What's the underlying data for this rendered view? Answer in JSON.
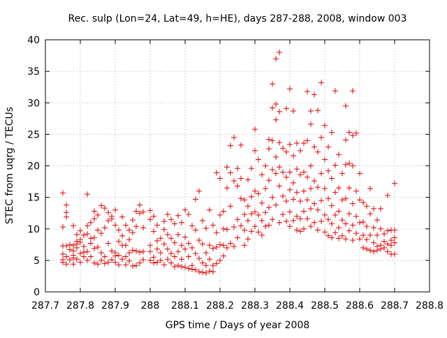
{
  "chart_data": {
    "type": "scatter",
    "title": "Rec. sulp (Lon=24, Lat=49, h=HE), days 287-288, 2008, window 003",
    "xlabel": "GPS time / Days of year 2008",
    "ylabel": "STEC from uqrg / TECUs",
    "xlim": [
      287.7,
      288.8
    ],
    "ylim": [
      0,
      40
    ],
    "x_ticks": [
      "287.7",
      "287.8",
      "287.9",
      "288",
      "288.1",
      "288.2",
      "288.3",
      "288.4",
      "288.5",
      "288.6",
      "288.7",
      "288.8"
    ],
    "y_ticks": [
      "0",
      "5",
      "10",
      "15",
      "20",
      "25",
      "30",
      "35",
      "40"
    ],
    "grid": true,
    "marker": "+",
    "colors": {
      "points": "#e00000",
      "grid": "#b0b0b0",
      "axes": "#000000"
    },
    "points": [
      [
        287.75,
        15.7
      ],
      [
        287.75,
        10.3
      ],
      [
        287.75,
        7.3
      ],
      [
        287.75,
        6.0
      ],
      [
        287.75,
        5.1
      ],
      [
        287.75,
        4.7
      ],
      [
        287.76,
        13.8
      ],
      [
        287.76,
        12.6
      ],
      [
        287.76,
        11.9
      ],
      [
        287.76,
        7.3
      ],
      [
        287.76,
        5.6
      ],
      [
        287.76,
        4.4
      ],
      [
        287.77,
        7.5
      ],
      [
        287.77,
        6.7
      ],
      [
        287.77,
        5.1
      ],
      [
        287.78,
        10.5
      ],
      [
        287.78,
        7.4
      ],
      [
        287.78,
        6.5
      ],
      [
        287.78,
        5.8
      ],
      [
        287.78,
        5.4
      ],
      [
        287.78,
        4.4
      ],
      [
        287.79,
        9.1
      ],
      [
        287.79,
        8.0
      ],
      [
        287.79,
        7.6
      ],
      [
        287.79,
        7.0
      ],
      [
        287.79,
        5.2
      ],
      [
        287.8,
        9.7
      ],
      [
        287.8,
        8.3
      ],
      [
        287.8,
        7.9
      ],
      [
        287.8,
        6.1
      ],
      [
        287.8,
        4.7
      ],
      [
        287.81,
        9.0
      ],
      [
        287.81,
        7.2
      ],
      [
        287.81,
        6.3
      ],
      [
        287.81,
        5.6
      ],
      [
        287.82,
        15.5
      ],
      [
        287.82,
        10.5
      ],
      [
        287.82,
        9.2
      ],
      [
        287.82,
        6.4
      ],
      [
        287.82,
        5.0
      ],
      [
        287.83,
        11.0
      ],
      [
        287.83,
        8.5
      ],
      [
        287.83,
        7.7
      ],
      [
        287.83,
        5.6
      ],
      [
        287.84,
        12.8
      ],
      [
        287.84,
        11.6
      ],
      [
        287.84,
        8.6
      ],
      [
        287.84,
        6.9
      ],
      [
        287.84,
        4.6
      ],
      [
        287.85,
        12.2
      ],
      [
        287.85,
        9.8
      ],
      [
        287.85,
        7.1
      ],
      [
        287.85,
        4.4
      ],
      [
        287.86,
        13.7
      ],
      [
        287.86,
        9.3
      ],
      [
        287.86,
        6.2
      ],
      [
        287.86,
        5.0
      ],
      [
        287.87,
        13.3
      ],
      [
        287.87,
        10.2
      ],
      [
        287.87,
        5.6
      ],
      [
        287.87,
        4.5
      ],
      [
        287.88,
        12.6
      ],
      [
        287.88,
        11.3
      ],
      [
        287.88,
        7.7
      ],
      [
        287.88,
        4.7
      ],
      [
        287.89,
        12.0
      ],
      [
        287.89,
        11.6
      ],
      [
        287.89,
        6.5
      ],
      [
        287.89,
        5.1
      ],
      [
        287.9,
        13.0
      ],
      [
        287.9,
        10.6
      ],
      [
        287.9,
        6.2
      ],
      [
        287.9,
        5.7
      ],
      [
        287.9,
        4.7
      ],
      [
        287.91,
        9.8
      ],
      [
        287.91,
        8.0
      ],
      [
        287.91,
        5.8
      ],
      [
        287.91,
        4.3
      ],
      [
        287.92,
        11.9
      ],
      [
        287.92,
        8.9
      ],
      [
        287.92,
        7.4
      ],
      [
        287.92,
        5.2
      ],
      [
        287.93,
        10.6
      ],
      [
        287.93,
        7.4
      ],
      [
        287.93,
        5.6
      ],
      [
        287.93,
        4.3
      ],
      [
        287.94,
        9.8
      ],
      [
        287.94,
        8.3
      ],
      [
        287.94,
        6.2
      ],
      [
        287.94,
        4.9
      ],
      [
        287.95,
        11.4
      ],
      [
        287.95,
        9.4
      ],
      [
        287.95,
        6.6
      ],
      [
        287.95,
        4.1
      ],
      [
        287.96,
        12.8
      ],
      [
        287.96,
        10.4
      ],
      [
        287.96,
        6.5
      ],
      [
        287.96,
        4.2
      ],
      [
        287.97,
        13.8
      ],
      [
        287.97,
        12.5
      ],
      [
        287.97,
        6.3
      ],
      [
        287.97,
        4.6
      ],
      [
        287.98,
        12.7
      ],
      [
        287.98,
        10.2
      ],
      [
        287.98,
        6.4
      ],
      [
        287.98,
        5.1
      ],
      [
        288.0,
        12.9
      ],
      [
        288.0,
        11.5
      ],
      [
        288.0,
        7.4
      ],
      [
        288.0,
        6.4
      ],
      [
        288.0,
        5.0
      ],
      [
        288.01,
        12.0
      ],
      [
        288.01,
        9.6
      ],
      [
        288.01,
        5.5
      ],
      [
        288.01,
        4.6
      ],
      [
        288.02,
        10.6
      ],
      [
        288.02,
        8.1
      ],
      [
        288.02,
        6.8
      ],
      [
        288.02,
        4.7
      ],
      [
        288.03,
        8.5
      ],
      [
        288.03,
        6.2
      ],
      [
        288.03,
        5.0
      ],
      [
        288.04,
        11.2
      ],
      [
        288.04,
        9.9
      ],
      [
        288.04,
        7.6
      ],
      [
        288.04,
        4.3
      ],
      [
        288.05,
        12.3
      ],
      [
        288.05,
        9.1
      ],
      [
        288.05,
        6.8
      ],
      [
        288.05,
        5.2
      ],
      [
        288.06,
        11.5
      ],
      [
        288.06,
        8.5
      ],
      [
        288.06,
        6.1
      ],
      [
        288.06,
        4.6
      ],
      [
        288.07,
        10.8
      ],
      [
        288.07,
        7.8
      ],
      [
        288.07,
        5.6
      ],
      [
        288.07,
        4.0
      ],
      [
        288.08,
        12.1
      ],
      [
        288.08,
        9.1
      ],
      [
        288.08,
        6.4
      ],
      [
        288.08,
        4.2
      ],
      [
        288.09,
        11.0
      ],
      [
        288.09,
        7.4
      ],
      [
        288.09,
        5.2
      ],
      [
        288.09,
        4.0
      ],
      [
        288.1,
        13.0
      ],
      [
        288.1,
        8.7
      ],
      [
        288.1,
        6.8
      ],
      [
        288.1,
        3.9
      ],
      [
        288.11,
        12.3
      ],
      [
        288.11,
        7.7
      ],
      [
        288.11,
        5.6
      ],
      [
        288.11,
        3.7
      ],
      [
        288.12,
        10.5
      ],
      [
        288.12,
        7.0
      ],
      [
        288.12,
        4.2
      ],
      [
        288.12,
        3.6
      ],
      [
        288.13,
        14.7
      ],
      [
        288.13,
        9.8
      ],
      [
        288.13,
        6.1
      ],
      [
        288.13,
        3.5
      ],
      [
        288.14,
        16.0
      ],
      [
        288.14,
        8.2
      ],
      [
        288.14,
        5.3
      ],
      [
        288.14,
        3.2
      ],
      [
        288.15,
        11.3
      ],
      [
        288.15,
        7.6
      ],
      [
        288.15,
        4.6
      ],
      [
        288.15,
        3.1
      ],
      [
        288.16,
        10.1
      ],
      [
        288.16,
        6.2
      ],
      [
        288.16,
        4.2
      ],
      [
        288.16,
        3.0
      ],
      [
        288.17,
        13.0
      ],
      [
        288.17,
        7.4
      ],
      [
        288.17,
        5.2
      ],
      [
        288.17,
        3.3
      ],
      [
        288.18,
        10.6
      ],
      [
        288.18,
        6.9
      ],
      [
        288.18,
        4.2
      ],
      [
        288.18,
        3.2
      ],
      [
        288.19,
        18.9
      ],
      [
        288.19,
        9.4
      ],
      [
        288.19,
        7.1
      ],
      [
        288.19,
        4.5
      ],
      [
        288.2,
        18.0
      ],
      [
        288.2,
        12.2
      ],
      [
        288.2,
        7.5
      ],
      [
        288.2,
        5.0
      ],
      [
        288.21,
        12.8
      ],
      [
        288.21,
        10.0
      ],
      [
        288.21,
        7.4
      ],
      [
        288.21,
        5.7
      ],
      [
        288.22,
        19.8
      ],
      [
        288.22,
        16.5
      ],
      [
        288.22,
        9.9
      ],
      [
        288.22,
        7.0
      ],
      [
        288.23,
        23.2
      ],
      [
        288.23,
        18.9
      ],
      [
        288.23,
        13.6
      ],
      [
        288.23,
        7.7
      ],
      [
        288.24,
        24.5
      ],
      [
        288.24,
        17.6
      ],
      [
        288.24,
        10.3
      ],
      [
        288.24,
        7.2
      ],
      [
        288.25,
        19.6
      ],
      [
        288.25,
        16.8
      ],
      [
        288.25,
        11.5
      ],
      [
        288.25,
        8.6
      ],
      [
        288.26,
        23.3
      ],
      [
        288.26,
        18.0
      ],
      [
        288.26,
        14.8
      ],
      [
        288.26,
        10.5
      ],
      [
        288.27,
        14.6
      ],
      [
        288.27,
        12.3
      ],
      [
        288.27,
        9.8
      ],
      [
        288.27,
        7.4
      ],
      [
        288.28,
        17.8
      ],
      [
        288.28,
        13.6
      ],
      [
        288.28,
        11.3
      ],
      [
        288.28,
        8.4
      ],
      [
        288.29,
        19.6
      ],
      [
        288.29,
        15.1
      ],
      [
        288.29,
        12.4
      ],
      [
        288.29,
        9.6
      ],
      [
        288.3,
        25.8
      ],
      [
        288.3,
        22.4
      ],
      [
        288.3,
        16.0
      ],
      [
        288.3,
        12.7
      ],
      [
        288.3,
        10.4
      ],
      [
        288.31,
        21.0
      ],
      [
        288.31,
        15.6
      ],
      [
        288.31,
        12.2
      ],
      [
        288.31,
        9.5
      ],
      [
        288.32,
        18.6
      ],
      [
        288.32,
        14.1
      ],
      [
        288.32,
        11.3
      ],
      [
        288.32,
        9.0
      ],
      [
        288.33,
        20.0
      ],
      [
        288.33,
        16.4
      ],
      [
        288.33,
        12.6
      ],
      [
        288.33,
        10.4
      ],
      [
        288.34,
        24.2
      ],
      [
        288.34,
        22.7
      ],
      [
        288.34,
        17.7
      ],
      [
        288.34,
        13.4
      ],
      [
        288.34,
        10.6
      ],
      [
        288.35,
        33.0
      ],
      [
        288.35,
        29.2
      ],
      [
        288.35,
        24.0
      ],
      [
        288.35,
        19.4
      ],
      [
        288.35,
        15.0
      ],
      [
        288.35,
        11.5
      ],
      [
        288.36,
        37.0
      ],
      [
        288.36,
        29.8
      ],
      [
        288.36,
        27.3
      ],
      [
        288.36,
        21.4
      ],
      [
        288.36,
        18.8
      ],
      [
        288.36,
        13.8
      ],
      [
        288.37,
        38.0
      ],
      [
        288.37,
        28.6
      ],
      [
        288.37,
        23.7
      ],
      [
        288.37,
        19.8
      ],
      [
        288.37,
        16.8
      ],
      [
        288.37,
        11.0
      ],
      [
        288.38,
        22.8
      ],
      [
        288.38,
        19.0
      ],
      [
        288.38,
        15.2
      ],
      [
        288.38,
        12.3
      ],
      [
        288.39,
        29.1
      ],
      [
        288.39,
        22.2
      ],
      [
        288.39,
        18.2
      ],
      [
        288.39,
        14.4
      ],
      [
        288.39,
        11.2
      ],
      [
        288.4,
        32.2
      ],
      [
        288.4,
        23.4
      ],
      [
        288.4,
        19.0
      ],
      [
        288.4,
        16.2
      ],
      [
        288.4,
        12.7
      ],
      [
        288.4,
        10.4
      ],
      [
        288.41,
        28.7
      ],
      [
        288.41,
        21.6
      ],
      [
        288.41,
        17.3
      ],
      [
        288.41,
        14.7
      ],
      [
        288.41,
        11.3
      ],
      [
        288.42,
        23.6
      ],
      [
        288.42,
        19.5
      ],
      [
        288.42,
        15.8
      ],
      [
        288.42,
        12.0
      ],
      [
        288.42,
        9.8
      ],
      [
        288.43,
        22.4
      ],
      [
        288.43,
        18.6
      ],
      [
        288.43,
        14.4
      ],
      [
        288.43,
        11.6
      ],
      [
        288.43,
        9.6
      ],
      [
        288.44,
        23.6
      ],
      [
        288.44,
        19.0
      ],
      [
        288.44,
        16.0
      ],
      [
        288.44,
        12.8
      ],
      [
        288.44,
        10.0
      ],
      [
        288.45,
        31.8
      ],
      [
        288.45,
        24.0
      ],
      [
        288.45,
        18.2
      ],
      [
        288.45,
        14.6
      ],
      [
        288.45,
        11.6
      ],
      [
        288.46,
        28.7
      ],
      [
        288.46,
        26.6
      ],
      [
        288.46,
        20.0
      ],
      [
        288.46,
        16.4
      ],
      [
        288.46,
        13.2
      ],
      [
        288.46,
        10.4
      ],
      [
        288.47,
        31.3
      ],
      [
        288.47,
        23.0
      ],
      [
        288.47,
        17.6
      ],
      [
        288.47,
        14.0
      ],
      [
        288.47,
        11.0
      ],
      [
        288.48,
        28.8
      ],
      [
        288.48,
        22.2
      ],
      [
        288.48,
        16.6
      ],
      [
        288.48,
        13.0
      ],
      [
        288.48,
        9.8
      ],
      [
        288.49,
        33.2
      ],
      [
        288.49,
        24.5
      ],
      [
        288.49,
        18.8
      ],
      [
        288.49,
        14.5
      ],
      [
        288.49,
        11.2
      ],
      [
        288.5,
        26.4
      ],
      [
        288.5,
        21.0
      ],
      [
        288.5,
        16.4
      ],
      [
        288.5,
        12.2
      ],
      [
        288.5,
        9.5
      ],
      [
        288.51,
        23.0
      ],
      [
        288.51,
        19.2
      ],
      [
        288.51,
        14.8
      ],
      [
        288.51,
        11.5
      ],
      [
        288.51,
        8.9
      ],
      [
        288.52,
        25.3
      ],
      [
        288.52,
        18.0
      ],
      [
        288.52,
        13.7
      ],
      [
        288.52,
        10.8
      ],
      [
        288.52,
        8.6
      ],
      [
        288.53,
        31.9
      ],
      [
        288.53,
        20.1
      ],
      [
        288.53,
        15.8
      ],
      [
        288.53,
        12.2
      ],
      [
        288.53,
        9.4
      ],
      [
        288.54,
        21.8
      ],
      [
        288.54,
        16.5
      ],
      [
        288.54,
        12.8
      ],
      [
        288.54,
        10.2
      ],
      [
        288.54,
        8.5
      ],
      [
        288.55,
        18.8
      ],
      [
        288.55,
        14.6
      ],
      [
        288.55,
        11.4
      ],
      [
        288.55,
        8.9
      ],
      [
        288.56,
        29.5
      ],
      [
        288.56,
        24.1
      ],
      [
        288.56,
        20.2
      ],
      [
        288.56,
        14.8
      ],
      [
        288.56,
        10.8
      ],
      [
        288.56,
        8.4
      ],
      [
        288.57,
        25.3
      ],
      [
        288.57,
        20.4
      ],
      [
        288.57,
        16.5
      ],
      [
        288.57,
        12.4
      ],
      [
        288.57,
        9.7
      ],
      [
        288.58,
        31.9
      ],
      [
        288.58,
        24.8
      ],
      [
        288.58,
        20.0
      ],
      [
        288.58,
        14.0
      ],
      [
        288.58,
        10.6
      ],
      [
        288.58,
        8.2
      ],
      [
        288.59,
        25.2
      ],
      [
        288.59,
        16.0
      ],
      [
        288.59,
        12.0
      ],
      [
        288.59,
        9.3
      ],
      [
        288.6,
        18.8
      ],
      [
        288.6,
        14.6
      ],
      [
        288.6,
        11.0
      ],
      [
        288.6,
        8.4
      ],
      [
        288.61,
        14.2
      ],
      [
        288.61,
        11.1
      ],
      [
        288.61,
        9.0
      ],
      [
        288.61,
        7.0
      ],
      [
        288.62,
        13.6
      ],
      [
        288.62,
        10.4
      ],
      [
        288.62,
        8.3
      ],
      [
        288.62,
        6.8
      ],
      [
        288.63,
        16.4
      ],
      [
        288.63,
        12.4
      ],
      [
        288.63,
        9.0
      ],
      [
        288.63,
        6.6
      ],
      [
        288.64,
        13.2
      ],
      [
        288.64,
        10.2
      ],
      [
        288.64,
        7.8
      ],
      [
        288.64,
        6.4
      ],
      [
        288.65,
        11.4
      ],
      [
        288.65,
        9.0
      ],
      [
        288.65,
        7.2
      ],
      [
        288.65,
        6.6
      ],
      [
        288.66,
        13.2
      ],
      [
        288.66,
        10.0
      ],
      [
        288.66,
        7.4
      ],
      [
        288.66,
        6.8
      ],
      [
        288.67,
        9.2
      ],
      [
        288.67,
        8.0
      ],
      [
        288.67,
        7.0
      ],
      [
        288.68,
        15.3
      ],
      [
        288.68,
        9.7
      ],
      [
        288.68,
        7.6
      ],
      [
        288.68,
        6.4
      ],
      [
        288.69,
        9.8
      ],
      [
        288.69,
        8.2
      ],
      [
        288.69,
        7.4
      ],
      [
        288.69,
        6.0
      ],
      [
        288.7,
        17.2
      ],
      [
        288.7,
        9.8
      ],
      [
        288.7,
        8.6
      ],
      [
        288.7,
        7.8
      ],
      [
        288.7,
        6.0
      ]
    ]
  }
}
